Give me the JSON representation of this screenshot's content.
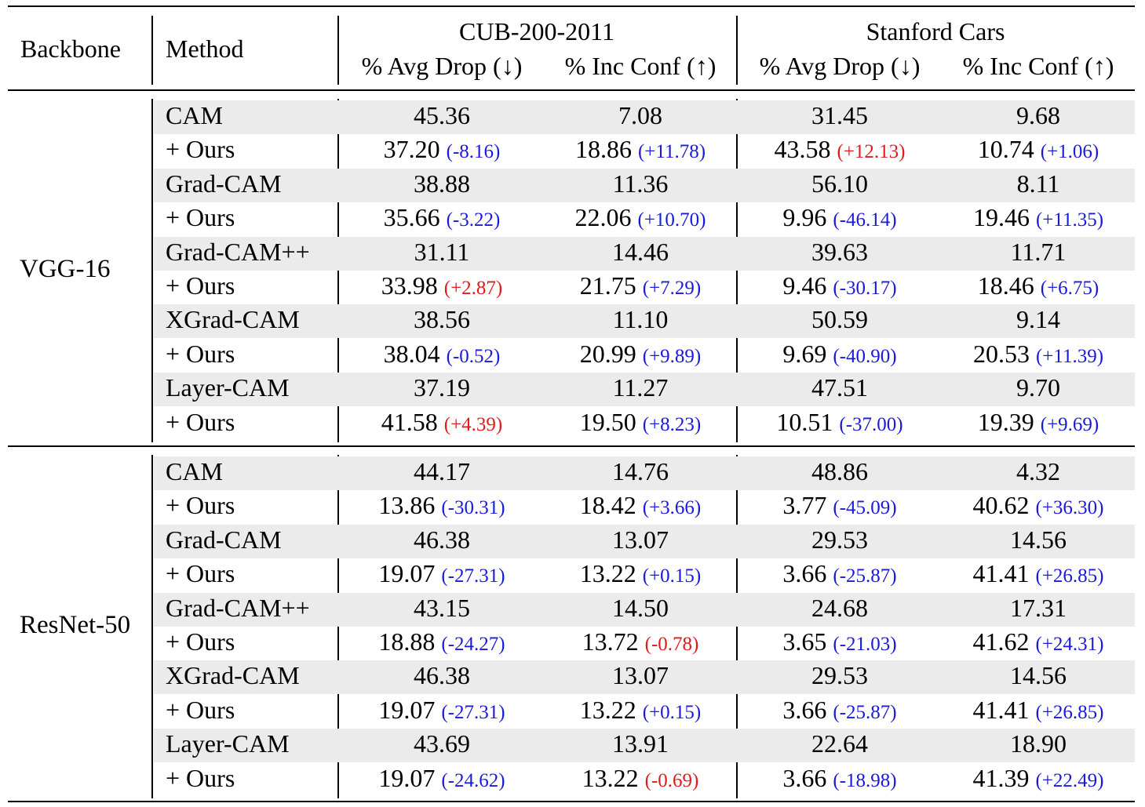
{
  "header": {
    "backbone": "Backbone",
    "method": "Method",
    "datasets": [
      {
        "name": "CUB-200-2011",
        "metrics": [
          "% Avg Drop (↓)",
          "% Inc Conf (↑)"
        ]
      },
      {
        "name": "Stanford Cars",
        "metrics": [
          "% Avg Drop (↓)",
          "% Inc Conf (↑)"
        ]
      }
    ]
  },
  "groups": [
    {
      "backbone": "VGG-16",
      "rows": [
        {
          "method": "CAM",
          "values": [
            {
              "v": "45.36"
            },
            {
              "v": "7.08"
            },
            {
              "v": "31.45"
            },
            {
              "v": "9.68"
            }
          ]
        },
        {
          "method": "+ Ours",
          "values": [
            {
              "v": "37.20",
              "d": "(-8.16)",
              "c": "blue"
            },
            {
              "v": "18.86",
              "d": "(+11.78)",
              "c": "blue"
            },
            {
              "v": "43.58",
              "d": "(+12.13)",
              "c": "red"
            },
            {
              "v": "10.74",
              "d": "(+1.06)",
              "c": "blue"
            }
          ]
        },
        {
          "method": "Grad-CAM",
          "values": [
            {
              "v": "38.88"
            },
            {
              "v": "11.36"
            },
            {
              "v": "56.10"
            },
            {
              "v": "8.11"
            }
          ]
        },
        {
          "method": "+ Ours",
          "values": [
            {
              "v": "35.66",
              "d": "(-3.22)",
              "c": "blue"
            },
            {
              "v": "22.06",
              "d": "(+10.70)",
              "c": "blue"
            },
            {
              "v": "9.96",
              "d": "(-46.14)",
              "c": "blue"
            },
            {
              "v": "19.46",
              "d": "(+11.35)",
              "c": "blue"
            }
          ]
        },
        {
          "method": "Grad-CAM++",
          "values": [
            {
              "v": "31.11"
            },
            {
              "v": "14.46"
            },
            {
              "v": "39.63"
            },
            {
              "v": "11.71"
            }
          ]
        },
        {
          "method": "+ Ours",
          "values": [
            {
              "v": "33.98",
              "d": "(+2.87)",
              "c": "red"
            },
            {
              "v": "21.75",
              "d": "(+7.29)",
              "c": "blue"
            },
            {
              "v": "9.46",
              "d": "(-30.17)",
              "c": "blue"
            },
            {
              "v": "18.46",
              "d": "(+6.75)",
              "c": "blue"
            }
          ]
        },
        {
          "method": "XGrad-CAM",
          "values": [
            {
              "v": "38.56"
            },
            {
              "v": "11.10"
            },
            {
              "v": "50.59"
            },
            {
              "v": "9.14"
            }
          ]
        },
        {
          "method": "+ Ours",
          "values": [
            {
              "v": "38.04",
              "d": "(-0.52)",
              "c": "blue"
            },
            {
              "v": "20.99",
              "d": "(+9.89)",
              "c": "blue"
            },
            {
              "v": "9.69",
              "d": "(-40.90)",
              "c": "blue"
            },
            {
              "v": "20.53",
              "d": "(+11.39)",
              "c": "blue"
            }
          ]
        },
        {
          "method": "Layer-CAM",
          "values": [
            {
              "v": "37.19"
            },
            {
              "v": "11.27"
            },
            {
              "v": "47.51"
            },
            {
              "v": "9.70"
            }
          ]
        },
        {
          "method": "+ Ours",
          "values": [
            {
              "v": "41.58",
              "d": "(+4.39)",
              "c": "red"
            },
            {
              "v": "19.50",
              "d": "(+8.23)",
              "c": "blue"
            },
            {
              "v": "10.51",
              "d": "(-37.00)",
              "c": "blue"
            },
            {
              "v": "19.39",
              "d": "(+9.69)",
              "c": "blue"
            }
          ]
        }
      ]
    },
    {
      "backbone": "ResNet-50",
      "rows": [
        {
          "method": "CAM",
          "values": [
            {
              "v": "44.17"
            },
            {
              "v": "14.76"
            },
            {
              "v": "48.86"
            },
            {
              "v": "4.32"
            }
          ]
        },
        {
          "method": "+ Ours",
          "values": [
            {
              "v": "13.86",
              "d": "(-30.31)",
              "c": "blue"
            },
            {
              "v": "18.42",
              "d": "(+3.66)",
              "c": "blue"
            },
            {
              "v": "3.77",
              "d": "(-45.09)",
              "c": "blue"
            },
            {
              "v": "40.62",
              "d": "(+36.30)",
              "c": "blue"
            }
          ]
        },
        {
          "method": "Grad-CAM",
          "values": [
            {
              "v": "46.38"
            },
            {
              "v": "13.07"
            },
            {
              "v": "29.53"
            },
            {
              "v": "14.56"
            }
          ]
        },
        {
          "method": "+ Ours",
          "values": [
            {
              "v": "19.07",
              "d": "(-27.31)",
              "c": "blue"
            },
            {
              "v": "13.22",
              "d": "(+0.15)",
              "c": "blue"
            },
            {
              "v": "3.66",
              "d": "(-25.87)",
              "c": "blue"
            },
            {
              "v": "41.41",
              "d": "(+26.85)",
              "c": "blue"
            }
          ]
        },
        {
          "method": "Grad-CAM++",
          "values": [
            {
              "v": "43.15"
            },
            {
              "v": "14.50"
            },
            {
              "v": "24.68"
            },
            {
              "v": "17.31"
            }
          ]
        },
        {
          "method": "+ Ours",
          "values": [
            {
              "v": "18.88",
              "d": "(-24.27)",
              "c": "blue"
            },
            {
              "v": "13.72",
              "d": "(-0.78)",
              "c": "red"
            },
            {
              "v": "3.65",
              "d": "(-21.03)",
              "c": "blue"
            },
            {
              "v": "41.62",
              "d": "(+24.31)",
              "c": "blue"
            }
          ]
        },
        {
          "method": "XGrad-CAM",
          "values": [
            {
              "v": "46.38"
            },
            {
              "v": "13.07"
            },
            {
              "v": "29.53"
            },
            {
              "v": "14.56"
            }
          ]
        },
        {
          "method": "+ Ours",
          "values": [
            {
              "v": "19.07",
              "d": "(-27.31)",
              "c": "blue"
            },
            {
              "v": "13.22",
              "d": "(+0.15)",
              "c": "blue"
            },
            {
              "v": "3.66",
              "d": "(-25.87)",
              "c": "blue"
            },
            {
              "v": "41.41",
              "d": "(+26.85)",
              "c": "blue"
            }
          ]
        },
        {
          "method": "Layer-CAM",
          "values": [
            {
              "v": "43.69"
            },
            {
              "v": "13.91"
            },
            {
              "v": "22.64"
            },
            {
              "v": "18.90"
            }
          ]
        },
        {
          "method": "+ Ours",
          "values": [
            {
              "v": "19.07",
              "d": "(-24.62)",
              "c": "blue"
            },
            {
              "v": "13.22",
              "d": "(-0.69)",
              "c": "red"
            },
            {
              "v": "3.66",
              "d": "(-18.98)",
              "c": "blue"
            },
            {
              "v": "41.39",
              "d": "(+22.49)",
              "c": "blue"
            }
          ]
        }
      ]
    }
  ],
  "colors": {
    "improve": "#1a1adb",
    "worse": "#e01b1b",
    "row_shade": "#ebebeb"
  }
}
